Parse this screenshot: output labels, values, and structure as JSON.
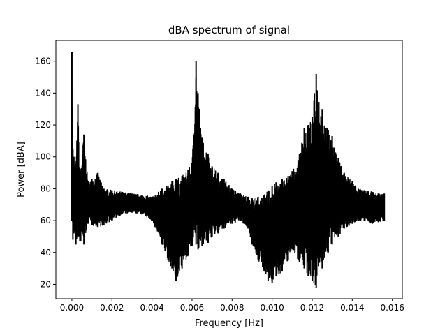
{
  "chart_data": {
    "type": "line",
    "title": "dBA spectrum of signal",
    "xlabel": "Frequency [Hz]",
    "ylabel": "Power [dBA]",
    "xlim": [
      -0.0008,
      0.0165
    ],
    "ylim": [
      11,
      173
    ],
    "xticks": [
      0.0,
      0.002,
      0.004,
      0.006,
      0.008,
      0.01,
      0.012,
      0.014,
      0.016
    ],
    "xtick_labels": [
      "0.000",
      "0.002",
      "0.004",
      "0.006",
      "0.008",
      "0.010",
      "0.012",
      "0.014",
      "0.016"
    ],
    "yticks": [
      20,
      40,
      60,
      80,
      100,
      120,
      140,
      160
    ],
    "ytick_labels": [
      "20",
      "40",
      "60",
      "80",
      "100",
      "120",
      "140",
      "160"
    ],
    "grid": false,
    "line_color": "#000000",
    "series": [
      {
        "x": [
          0.0,
          5e-05,
          0.0001,
          0.0002,
          0.0003,
          0.0004,
          0.0006,
          0.0008,
          0.001,
          0.0013,
          0.0016,
          0.002,
          0.0025,
          0.003,
          0.0035,
          0.004,
          0.0045,
          0.0048,
          0.005,
          0.0052,
          0.0055,
          0.0058,
          0.006,
          0.0062,
          0.0063,
          0.0065,
          0.0068,
          0.007,
          0.0073,
          0.0076,
          0.008,
          0.0084,
          0.0088,
          0.009,
          0.0093,
          0.0096,
          0.0098,
          0.01,
          0.0102,
          0.0105,
          0.0108,
          0.011,
          0.0113,
          0.0116,
          0.0118,
          0.012,
          0.0122,
          0.0125,
          0.0128,
          0.013,
          0.0133,
          0.0136,
          0.014,
          0.0143,
          0.0146,
          0.015,
          0.0153,
          0.0156
        ],
        "y_max": [
          166,
          105,
          100,
          95,
          133,
          90,
          114,
          85,
          86,
          90,
          80,
          79,
          78,
          77,
          76,
          75,
          80,
          82,
          85,
          86,
          88,
          92,
          96,
          160,
          140,
          112,
          102,
          94,
          90,
          86,
          80,
          77,
          75,
          74,
          75,
          76,
          79,
          82,
          84,
          86,
          88,
          91,
          98,
          118,
          120,
          125,
          152,
          130,
          117,
          113,
          99,
          90,
          85,
          80,
          79,
          78,
          77,
          77
        ],
        "y_min": [
          60,
          48,
          52,
          45,
          50,
          47,
          45,
          58,
          57,
          56,
          57,
          60,
          64,
          65,
          64,
          60,
          45,
          35,
          30,
          22,
          30,
          38,
          44,
          45,
          42,
          44,
          46,
          50,
          52,
          55,
          58,
          60,
          55,
          45,
          35,
          28,
          22,
          21,
          25,
          28,
          35,
          42,
          35,
          30,
          25,
          22,
          18,
          30,
          40,
          45,
          50,
          55,
          58,
          60,
          60,
          58,
          59,
          60
        ]
      }
    ]
  }
}
